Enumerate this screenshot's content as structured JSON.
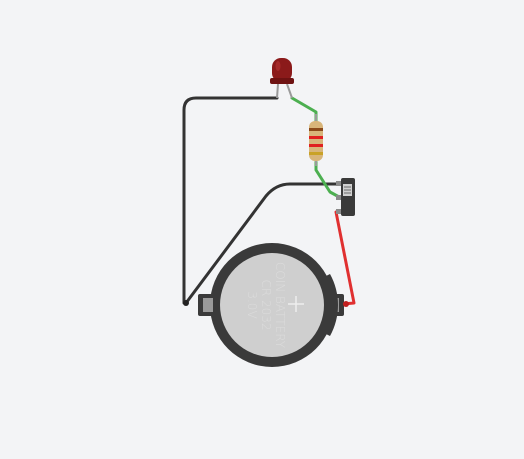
{
  "circuit": {
    "components": {
      "led": {
        "icon": "led-icon",
        "color": "#8b1a1a"
      },
      "resistor": {
        "icon": "resistor-icon",
        "band_colors": [
          "#8b4a1a",
          "#e02020",
          "#e02020",
          "#c9a227"
        ]
      },
      "slide_switch": {
        "icon": "slide-switch-icon"
      },
      "coin_battery": {
        "icon": "coin-battery-icon",
        "label_line1": "COIN BATTERY",
        "label_line2": "CR 2032",
        "label_line3": "3.0V",
        "plus_symbol": "+"
      }
    },
    "wires": {
      "ground_wire_color": "#333333",
      "power_wire_color": "#e03030",
      "signal_wire_color": "#4caf50"
    }
  }
}
